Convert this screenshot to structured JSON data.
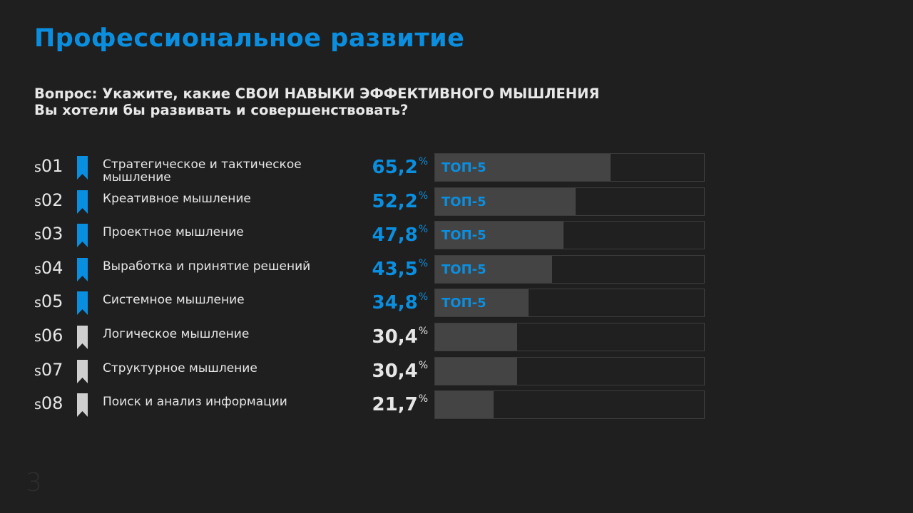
{
  "title": "Профессиональное развитие",
  "question": {
    "line1": "Вопрос: Укажите, какие СВОИ НАВЫКИ ЭФФЕКТИВНОГО МЫШЛЕНИЯ",
    "line2": "Вы хотели бы развивать и совершенствовать?"
  },
  "page_number": "3",
  "colors": {
    "accent": "#0a8fe0",
    "bookmark_gray": "#cfcfcf",
    "bar_fill": "#444444"
  },
  "badge_label": "ТОП-5",
  "chart_data": {
    "type": "bar",
    "orientation": "horizontal",
    "xlim": [
      0,
      100
    ],
    "unit": "%",
    "items": [
      {
        "prefix": "s",
        "code": "01",
        "label": "Стратегическое и тактическое мышление",
        "value": 65.2,
        "display": "65,2",
        "top5": true
      },
      {
        "prefix": "s",
        "code": "02",
        "label": "Креативное мышление",
        "value": 52.2,
        "display": "52,2",
        "top5": true
      },
      {
        "prefix": "s",
        "code": "03",
        "label": "Проектное мышление",
        "value": 47.8,
        "display": "47,8",
        "top5": true
      },
      {
        "prefix": "s",
        "code": "04",
        "label": "Выработка и принятие решений",
        "value": 43.5,
        "display": "43,5",
        "top5": true
      },
      {
        "prefix": "s",
        "code": "05",
        "label": "Системное мышление",
        "value": 34.8,
        "display": "34,8",
        "top5": true
      },
      {
        "prefix": "s",
        "code": "06",
        "label": "Логическое мышление",
        "value": 30.4,
        "display": "30,4",
        "top5": false
      },
      {
        "prefix": "s",
        "code": "07",
        "label": "Структурное мышление",
        "value": 30.4,
        "display": "30,4",
        "top5": false
      },
      {
        "prefix": "s",
        "code": "08",
        "label": "Поиск и анализ информации",
        "value": 21.7,
        "display": "21,7",
        "top5": false
      }
    ]
  }
}
